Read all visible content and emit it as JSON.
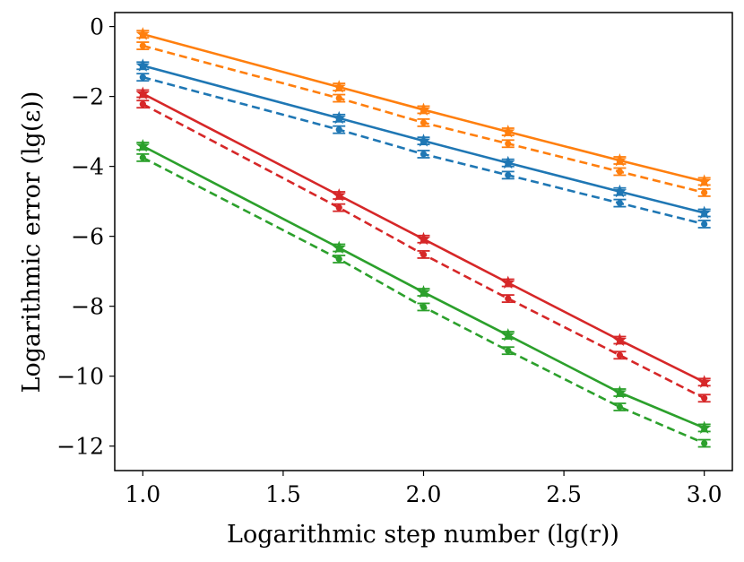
{
  "chart_data": {
    "type": "line",
    "xlabel": "Logarithmic step number (lg(r))",
    "ylabel": "Logarithmic error (lg(ε))",
    "xlim": [
      0.9,
      3.1
    ],
    "ylim": [
      -12.7,
      0.4
    ],
    "xticks": [
      1.0,
      1.5,
      2.0,
      2.5,
      3.0
    ],
    "xtick_labels": [
      "1.0",
      "1.5",
      "2.0",
      "2.5",
      "3.0"
    ],
    "yticks": [
      0,
      -2,
      -4,
      -6,
      -8,
      -10,
      -12
    ],
    "ytick_labels": [
      "0",
      "−2",
      "−4",
      "−6",
      "−8",
      "−10",
      "−12"
    ],
    "x": [
      1.0,
      1.699,
      2.0,
      2.301,
      2.699,
      3.0
    ],
    "series": [
      {
        "name": "orange-solid",
        "color": "#ff7f0e",
        "linestyle": "solid",
        "marker": "star",
        "values": [
          -0.22,
          -1.73,
          -2.38,
          -3.01,
          -3.83,
          -4.43
        ]
      },
      {
        "name": "orange-dashed",
        "color": "#ff7f0e",
        "linestyle": "dashed",
        "marker": "dot",
        "values": [
          -0.55,
          -2.05,
          -2.75,
          -3.35,
          -4.15,
          -4.75
        ]
      },
      {
        "name": "blue-solid",
        "color": "#1f77b4",
        "linestyle": "solid",
        "marker": "star",
        "values": [
          -1.12,
          -2.62,
          -3.27,
          -3.9,
          -4.72,
          -5.33
        ]
      },
      {
        "name": "blue-dashed",
        "color": "#1f77b4",
        "linestyle": "dashed",
        "marker": "dot",
        "values": [
          -1.45,
          -2.95,
          -3.65,
          -4.25,
          -5.05,
          -5.65
        ]
      },
      {
        "name": "red-solid",
        "color": "#d62728",
        "linestyle": "solid",
        "marker": "star",
        "values": [
          -1.92,
          -4.83,
          -6.08,
          -7.33,
          -8.97,
          -10.17
        ]
      },
      {
        "name": "red-dashed",
        "color": "#d62728",
        "linestyle": "dashed",
        "marker": "dot",
        "values": [
          -2.22,
          -5.18,
          -6.52,
          -7.78,
          -9.4,
          -10.63
        ]
      },
      {
        "name": "green-solid",
        "color": "#2ca02c",
        "linestyle": "solid",
        "marker": "star",
        "values": [
          -3.42,
          -6.33,
          -7.6,
          -8.83,
          -10.47,
          -11.48
        ]
      },
      {
        "name": "green-dashed",
        "color": "#2ca02c",
        "linestyle": "dashed",
        "marker": "dot",
        "values": [
          -3.75,
          -6.65,
          -8.02,
          -9.27,
          -10.88,
          -11.92
        ]
      }
    ]
  }
}
